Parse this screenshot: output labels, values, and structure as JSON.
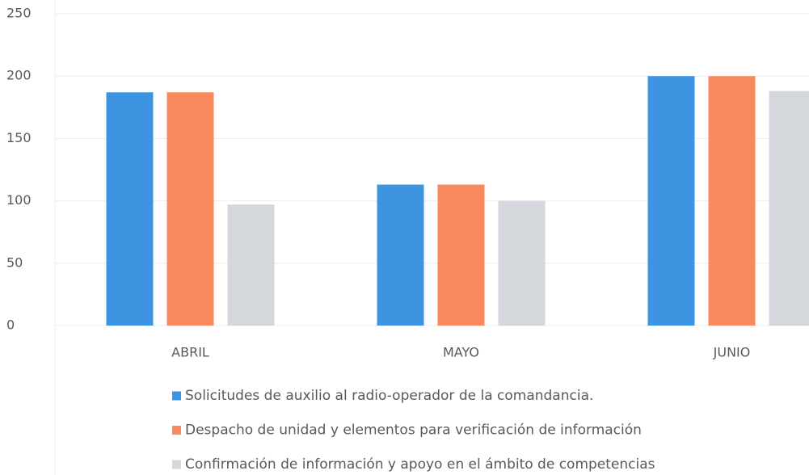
{
  "chart_data": {
    "type": "bar",
    "categories": [
      "ABRIL",
      "MAYO",
      "JUNIO"
    ],
    "series": [
      {
        "name": "Solicitudes de auxilio al radio-operador de la comandancia.",
        "color": "#3d94e0",
        "values": [
          187,
          113,
          200
        ]
      },
      {
        "name": "Despacho de unidad y elementos para verificación de información",
        "color": "#fa8a5d",
        "values": [
          187,
          113,
          200
        ]
      },
      {
        "name": "Confirmación de información y apoyo en el ámbito de competencias",
        "color": "#d4d7db",
        "values": [
          97,
          100,
          188
        ]
      }
    ],
    "ylim": [
      0,
      250
    ],
    "yticks": [
      0,
      50,
      100,
      150,
      200,
      250
    ],
    "grid": true,
    "legend": "bottom"
  }
}
